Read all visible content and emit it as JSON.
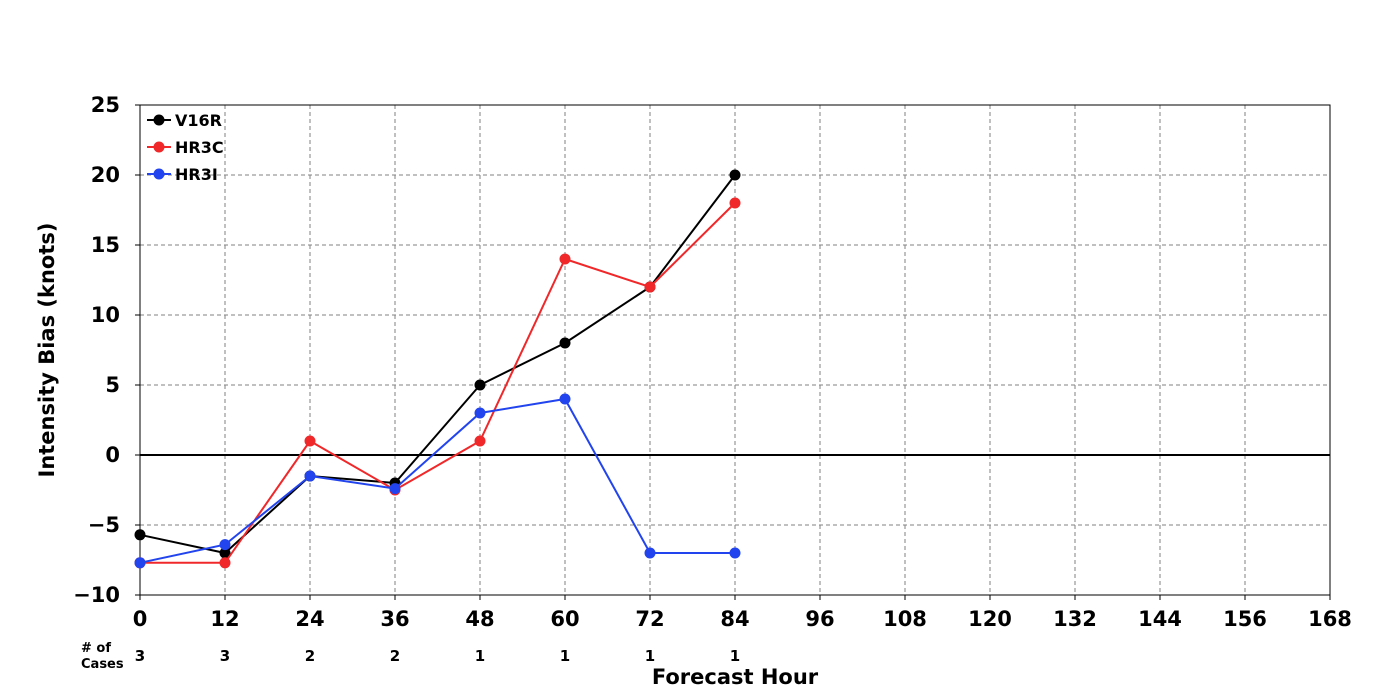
{
  "chart_data": {
    "type": "line",
    "title": "",
    "xlabel": "Forecast Hour",
    "ylabel": "Intensity Bias (knots)",
    "xlim": [
      0,
      168
    ],
    "ylim": [
      -10,
      25
    ],
    "x_ticks": [
      0,
      12,
      24,
      36,
      48,
      60,
      72,
      84,
      96,
      108,
      120,
      132,
      144,
      156,
      168
    ],
    "y_ticks": [
      -10,
      -5,
      0,
      5,
      10,
      15,
      20,
      25
    ],
    "y_tick_labels": [
      "−10",
      "−5",
      "0",
      "5",
      "10",
      "15",
      "20",
      "25"
    ],
    "grid": true,
    "zero_line": true,
    "legend_position": "top-left",
    "x": [
      0,
      12,
      24,
      36,
      48,
      60,
      72,
      84
    ],
    "series": [
      {
        "name": "V16R",
        "color": "#000000",
        "values": [
          -5.7,
          -7,
          -1.5,
          -2,
          5,
          8,
          12,
          20
        ]
      },
      {
        "name": "HR3C",
        "color": "#f0282a",
        "values": [
          -7.7,
          -7.7,
          1,
          -2.5,
          1,
          14,
          12,
          18
        ]
      },
      {
        "name": "HR3I",
        "color": "#2244ee",
        "values": [
          -7.7,
          -6.4,
          -1.5,
          -2.4,
          3,
          4,
          -7,
          -7
        ]
      }
    ],
    "cases": {
      "label_line1": "# of",
      "label_line2": "Cases",
      "hours": [
        0,
        12,
        24,
        36,
        48,
        60,
        72,
        84
      ],
      "counts": [
        "3",
        "3",
        "2",
        "2",
        "1",
        "1",
        "1",
        "1"
      ]
    }
  }
}
